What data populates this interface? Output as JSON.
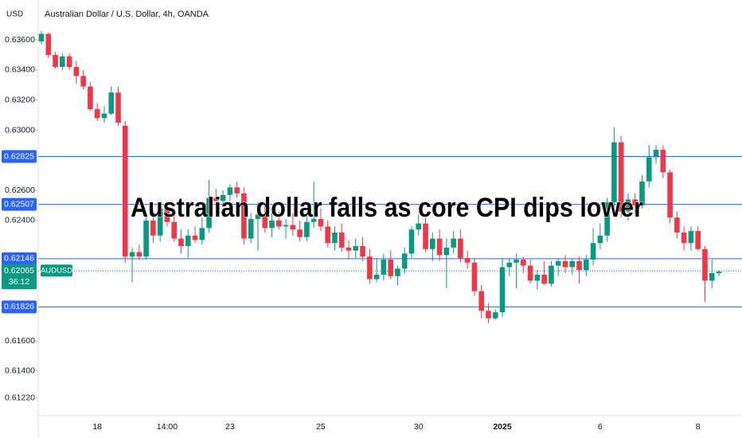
{
  "chart_data": {
    "type": "candlestick",
    "title": "Australian dollar falls as core CPI dips lower",
    "symbol_title": "Australian Dollar / U.S. Dollar, 4h, OANDA",
    "currency": "USD",
    "up_color": "#089981",
    "down_color": "#f23645",
    "level_color": "#2962ff",
    "ylim": [
      0.61103,
      0.63865
    ],
    "yticks": [
      {
        "value": 0.636,
        "label": "0.63600"
      },
      {
        "value": 0.634,
        "label": "0.63400"
      },
      {
        "value": 0.632,
        "label": "0.63200"
      },
      {
        "value": 0.63,
        "label": "0.63000"
      },
      {
        "value": 0.626,
        "label": "0.62600"
      },
      {
        "value": 0.624,
        "label": "0.62400"
      },
      {
        "value": 0.616,
        "label": "0.61600"
      },
      {
        "value": 0.614,
        "label": "0.61400"
      },
      {
        "value": 0.6122,
        "label": "0.61220"
      }
    ],
    "levels": [
      {
        "value": 0.62825,
        "label": "0.62825"
      },
      {
        "value": 0.62507,
        "label": "0.62507"
      },
      {
        "value": 0.62146,
        "label": "0.62146"
      },
      {
        "value": 0.61826,
        "label": "0.61826"
      }
    ],
    "current": {
      "value": 0.62065,
      "label": "0.62065",
      "name": "AUDUSD",
      "countdown": "36:12"
    },
    "categories": [
      null,
      null,
      null,
      null,
      null,
      null,
      null,
      null,
      "18",
      null,
      null,
      null,
      null,
      null,
      null,
      null,
      null,
      null,
      "14:00",
      null,
      null,
      null,
      null,
      null,
      null,
      null,
      null,
      "23",
      null,
      null,
      null,
      null,
      null,
      null,
      null,
      null,
      null,
      null,
      null,
      null,
      "25",
      null,
      null,
      null,
      null,
      null,
      null,
      null,
      null,
      null,
      null,
      null,
      null,
      null,
      "30",
      null,
      null,
      null,
      null,
      null,
      null,
      null,
      null,
      null,
      null,
      null,
      "2025",
      null,
      null,
      null,
      null,
      null,
      null,
      null,
      null,
      null,
      null,
      null,
      null,
      null,
      "6",
      null,
      null,
      null,
      null,
      null,
      null,
      null,
      null,
      null,
      null,
      null,
      null,
      null,
      "8",
      null,
      null,
      null
    ],
    "open": [
      0.6359,
      0.6364,
      0.635,
      0.6342,
      0.6349,
      0.6342,
      0.6336,
      0.6329,
      0.6314,
      0.6308,
      0.6311,
      0.6325,
      0.6303,
      0.6216,
      0.6219,
      0.6216,
      0.624,
      0.623,
      0.6248,
      0.6239,
      0.6228,
      0.6223,
      0.623,
      0.6227,
      0.6235,
      0.6255,
      0.6253,
      0.6257,
      0.6262,
      0.6258,
      0.6228,
      0.6241,
      0.6244,
      0.6235,
      0.624,
      0.6236,
      0.6237,
      0.6234,
      0.6229,
      0.6239,
      0.6241,
      0.6236,
      0.6225,
      0.6232,
      0.6222,
      0.622,
      0.6223,
      0.6216,
      0.6201,
      0.6204,
      0.6214,
      0.6203,
      0.6208,
      0.6218,
      0.6234,
      0.6238,
      0.6221,
      0.6228,
      0.6217,
      0.6222,
      0.6228,
      0.6215,
      0.6212,
      0.6193,
      0.618,
      0.6175,
      0.6179,
      0.6209,
      0.6212,
      0.6214,
      0.621,
      0.62,
      0.6204,
      0.6198,
      0.621,
      0.6213,
      0.6209,
      0.6213,
      0.6207,
      0.6214,
      0.6225,
      0.623,
      0.6252,
      0.6292,
      0.6246,
      0.6254,
      0.625,
      0.6266,
      0.6282,
      0.6287,
      0.6272,
      0.6242,
      0.6232,
      0.6225,
      0.6233,
      0.6221,
      0.62,
      0.6205
    ],
    "high": [
      0.6366,
      0.6365,
      0.6352,
      0.6351,
      0.6351,
      0.6346,
      0.634,
      0.6332,
      0.6318,
      0.6316,
      0.6329,
      0.6329,
      0.6306,
      0.6222,
      0.6224,
      0.6244,
      0.6247,
      0.625,
      0.6251,
      0.6243,
      0.6234,
      0.6234,
      0.6236,
      0.6242,
      0.6267,
      0.6261,
      0.626,
      0.6264,
      0.6266,
      0.6262,
      0.6245,
      0.6252,
      0.625,
      0.6248,
      0.6246,
      0.6241,
      0.6245,
      0.624,
      0.6243,
      0.6266,
      0.6248,
      0.624,
      0.6236,
      0.6238,
      0.6227,
      0.6228,
      0.6229,
      0.6221,
      0.6215,
      0.6218,
      0.622,
      0.621,
      0.6222,
      0.6236,
      0.6244,
      0.6242,
      0.6232,
      0.6234,
      0.6228,
      0.6233,
      0.6234,
      0.622,
      0.6215,
      0.6197,
      0.6185,
      0.6181,
      0.6215,
      0.6215,
      0.6218,
      0.6216,
      0.6214,
      0.6207,
      0.6213,
      0.6213,
      0.6215,
      0.6217,
      0.6215,
      0.6216,
      0.6217,
      0.6235,
      0.6238,
      0.6255,
      0.6302,
      0.6296,
      0.6258,
      0.6258,
      0.627,
      0.629,
      0.629,
      0.629,
      0.6274,
      0.6246,
      0.6236,
      0.6236,
      0.6236,
      0.6223,
      0.6214,
      0.6207
    ],
    "low": [
      0.6357,
      0.6348,
      0.6341,
      0.634,
      0.634,
      0.6331,
      0.6327,
      0.6313,
      0.6306,
      0.6305,
      0.631,
      0.6303,
      0.6212,
      0.6199,
      0.6214,
      0.6214,
      0.6225,
      0.6226,
      0.6236,
      0.6226,
      0.6218,
      0.6215,
      0.6225,
      0.6224,
      0.6232,
      0.6248,
      0.6249,
      0.6253,
      0.6255,
      0.6224,
      0.6225,
      0.622,
      0.6232,
      0.6229,
      0.6234,
      0.6228,
      0.623,
      0.6226,
      0.6226,
      0.6235,
      0.6233,
      0.6222,
      0.622,
      0.6219,
      0.6214,
      0.6215,
      0.6213,
      0.6198,
      0.6199,
      0.62,
      0.6201,
      0.6197,
      0.6205,
      0.6215,
      0.623,
      0.6219,
      0.6213,
      0.6213,
      0.6195,
      0.6218,
      0.6212,
      0.6208,
      0.619,
      0.6175,
      0.6172,
      0.6174,
      0.6176,
      0.6203,
      0.6195,
      0.6205,
      0.6198,
      0.6194,
      0.6197,
      0.6196,
      0.6203,
      0.6205,
      0.6204,
      0.6198,
      0.6203,
      0.621,
      0.6221,
      0.6226,
      0.6248,
      0.6242,
      0.624,
      0.6244,
      0.6248,
      0.6262,
      0.6278,
      0.6268,
      0.6238,
      0.6228,
      0.622,
      0.622,
      0.622,
      0.6186,
      0.6195,
      0.6203
    ],
    "close": [
      0.6364,
      0.635,
      0.6342,
      0.6349,
      0.6342,
      0.6336,
      0.6329,
      0.6314,
      0.6308,
      0.6311,
      0.6325,
      0.6305,
      0.6216,
      0.6219,
      0.6216,
      0.624,
      0.623,
      0.6248,
      0.6239,
      0.6228,
      0.6223,
      0.623,
      0.6227,
      0.6235,
      0.6255,
      0.6253,
      0.6257,
      0.6262,
      0.6258,
      0.6228,
      0.6241,
      0.6244,
      0.6235,
      0.624,
      0.6236,
      0.6237,
      0.6234,
      0.6229,
      0.6239,
      0.6241,
      0.6236,
      0.6225,
      0.6232,
      0.6222,
      0.622,
      0.6223,
      0.6216,
      0.6201,
      0.6204,
      0.6214,
      0.6203,
      0.6208,
      0.6218,
      0.6234,
      0.6238,
      0.6221,
      0.6228,
      0.6217,
      0.6222,
      0.6228,
      0.6215,
      0.6212,
      0.6193,
      0.618,
      0.6175,
      0.6179,
      0.6209,
      0.6212,
      0.6214,
      0.621,
      0.62,
      0.6204,
      0.6198,
      0.621,
      0.6213,
      0.6209,
      0.6213,
      0.6207,
      0.6214,
      0.6225,
      0.623,
      0.6252,
      0.6292,
      0.6246,
      0.6254,
      0.625,
      0.6266,
      0.6282,
      0.6287,
      0.6272,
      0.6242,
      0.6232,
      0.6225,
      0.6233,
      0.6221,
      0.62,
      0.6205,
      0.6206
    ]
  }
}
